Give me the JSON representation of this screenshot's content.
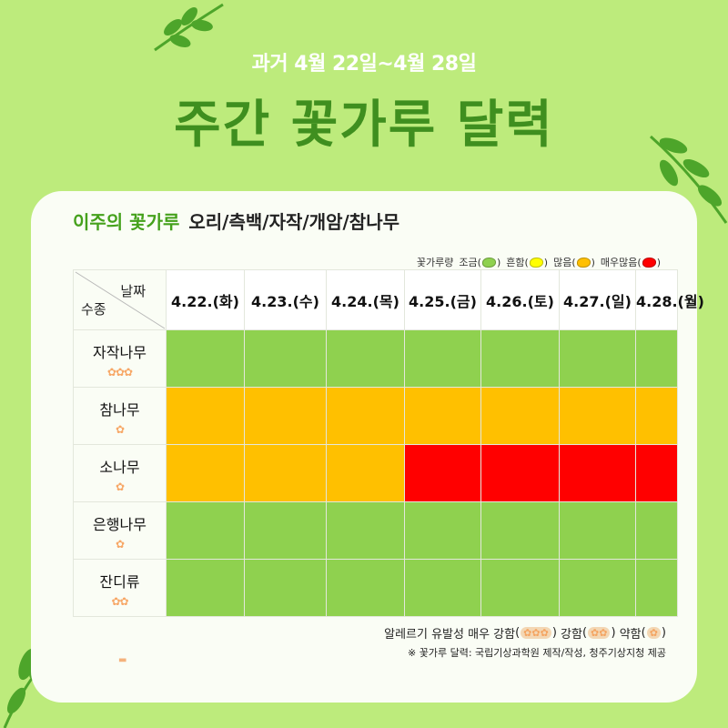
{
  "header": {
    "subtitle": "과거 4월 22일~4월 28일",
    "title": "주간 꽃가루 달력"
  },
  "card": {
    "heading_highlight": "이주의 꽃가루",
    "heading_species": "오리/측백/자작/개암/참나무",
    "legend_prefix": "꽃가루량",
    "levels": [
      {
        "label": "조금",
        "color": "#8fd14f"
      },
      {
        "label": "흔함",
        "color": "#ffff00"
      },
      {
        "label": "많음",
        "color": "#ffc000"
      },
      {
        "label": "매우많음",
        "color": "#ff0000"
      }
    ],
    "corner_date": "날짜",
    "corner_species": "수종",
    "dates": [
      "4.22.(화)",
      "4.23.(수)",
      "4.24.(목)",
      "4.25.(금)",
      "4.26.(토)",
      "4.27.(일)",
      "4.28.(월)"
    ],
    "rows": [
      {
        "name": "자작나무",
        "allergy_flowers": 3,
        "levels": [
          "조금",
          "조금",
          "조금",
          "조금",
          "조금",
          "조금",
          "조금"
        ]
      },
      {
        "name": "참나무",
        "allergy_flowers": 1,
        "levels": [
          "많음",
          "많음",
          "많음",
          "많음",
          "많음",
          "많음",
          "많음"
        ]
      },
      {
        "name": "소나무",
        "allergy_flowers": 1,
        "levels": [
          "많음",
          "많음",
          "많음",
          "매우많음",
          "매우많음",
          "매우많음",
          "매우많음"
        ]
      },
      {
        "name": "은행나무",
        "allergy_flowers": 1,
        "levels": [
          "조금",
          "조금",
          "조금",
          "조금",
          "조금",
          "조금",
          "조금"
        ]
      },
      {
        "name": "잔디류",
        "allergy_flowers": 2,
        "levels": [
          "조금",
          "조금",
          "조금",
          "조금",
          "조금",
          "조금",
          "조금"
        ]
      }
    ],
    "footnote_prefix": "알레르기 유발성",
    "footnote_strong": "매우 강함",
    "footnote_medium": "강함",
    "footnote_weak": "약함",
    "source": "※ 꽃가루 달력: 국립기상과학원 제작/작성,  청주기상지청 제공"
  },
  "colors": {
    "background": "#bdeb7c",
    "title": "#3f8f1f",
    "highlight": "#45a11c",
    "flower": "#f7a766"
  }
}
